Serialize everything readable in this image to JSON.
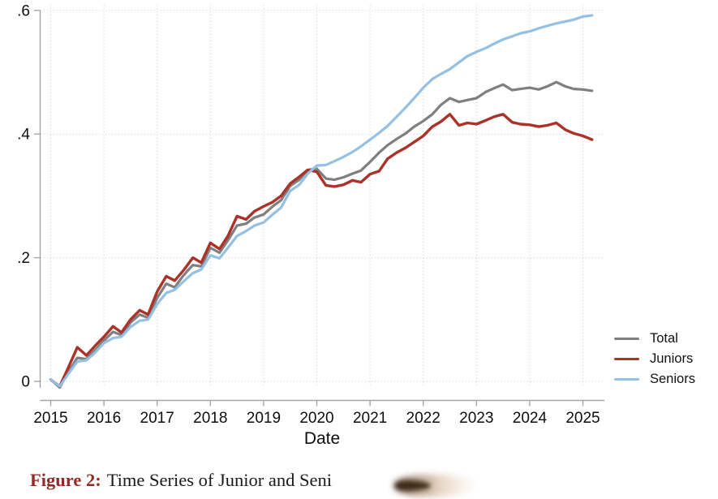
{
  "figure": {
    "caption_prefix": "Figure 2:",
    "caption_text": "Time Series of Junior and Seni",
    "caption_color": "#8f2a24"
  },
  "legend": {
    "entries": [
      {
        "label": "Total",
        "color": "#7f7f7f"
      },
      {
        "label": "Juniors",
        "color": "#ab3229"
      },
      {
        "label": "Seniors",
        "color": "#94c0e3"
      }
    ]
  },
  "chart_data": {
    "type": "line",
    "title": "",
    "xlabel": "Date",
    "ylabel": "",
    "grid": "dotted",
    "legend_position": "right",
    "xlim": [
      2014.8,
      2025.4
    ],
    "ylim": [
      -0.02,
      0.62
    ],
    "x_ticks": [
      2015,
      2016,
      2017,
      2018,
      2019,
      2020,
      2021,
      2022,
      2023,
      2024,
      2025
    ],
    "y_ticks": [
      {
        "label": "0",
        "value": 0
      },
      {
        "label": ".2",
        "value": 0.2
      },
      {
        "label": ".4",
        "value": 0.4
      },
      {
        "label": ".6",
        "value": 0.6
      }
    ],
    "x": [
      2015,
      2015.17,
      2015.33,
      2015.5,
      2015.67,
      2015.83,
      2016,
      2016.17,
      2016.33,
      2016.5,
      2016.67,
      2016.83,
      2017,
      2017.17,
      2017.33,
      2017.5,
      2017.67,
      2017.83,
      2018,
      2018.17,
      2018.33,
      2018.5,
      2018.67,
      2018.83,
      2019,
      2019.17,
      2019.33,
      2019.5,
      2019.67,
      2019.83,
      2020,
      2020.17,
      2020.33,
      2020.5,
      2020.67,
      2020.83,
      2021,
      2021.17,
      2021.33,
      2021.5,
      2021.67,
      2021.83,
      2022,
      2022.17,
      2022.33,
      2022.5,
      2022.67,
      2022.83,
      2023,
      2023.17,
      2023.33,
      2023.5,
      2023.67,
      2023.83,
      2024,
      2024.17,
      2024.33,
      2024.5,
      2024.67,
      2024.83,
      2025,
      2025.17
    ],
    "series": [
      {
        "name": "Total",
        "color": "#7f7f7f",
        "width": 3.2,
        "values": [
          0.003,
          -0.01,
          0.015,
          0.038,
          0.036,
          0.05,
          0.066,
          0.08,
          0.075,
          0.095,
          0.108,
          0.103,
          0.135,
          0.158,
          0.152,
          0.172,
          0.188,
          0.186,
          0.216,
          0.208,
          0.228,
          0.252,
          0.255,
          0.265,
          0.27,
          0.283,
          0.293,
          0.316,
          0.326,
          0.342,
          0.344,
          0.328,
          0.326,
          0.33,
          0.336,
          0.341,
          0.355,
          0.37,
          0.382,
          0.392,
          0.401,
          0.412,
          0.421,
          0.432,
          0.447,
          0.458,
          0.452,
          0.455,
          0.458,
          0.468,
          0.474,
          0.48,
          0.471,
          0.473,
          0.475,
          0.472,
          0.477,
          0.484,
          0.477,
          0.473,
          0.472,
          0.47
        ]
      },
      {
        "name": "Juniors",
        "color": "#ab3229",
        "width": 3.4,
        "values": [
          0.003,
          -0.008,
          0.022,
          0.055,
          0.042,
          0.057,
          0.072,
          0.089,
          0.079,
          0.1,
          0.115,
          0.108,
          0.145,
          0.17,
          0.163,
          0.18,
          0.2,
          0.192,
          0.224,
          0.214,
          0.235,
          0.267,
          0.262,
          0.275,
          0.283,
          0.29,
          0.3,
          0.32,
          0.331,
          0.342,
          0.339,
          0.317,
          0.315,
          0.318,
          0.325,
          0.322,
          0.335,
          0.34,
          0.36,
          0.37,
          0.378,
          0.387,
          0.397,
          0.412,
          0.42,
          0.432,
          0.414,
          0.418,
          0.416,
          0.422,
          0.428,
          0.432,
          0.419,
          0.416,
          0.415,
          0.412,
          0.414,
          0.418,
          0.407,
          0.401,
          0.397,
          0.391
        ]
      },
      {
        "name": "Seniors",
        "color": "#94c0e3",
        "width": 3.2,
        "values": [
          0.003,
          -0.008,
          0.012,
          0.032,
          0.034,
          0.046,
          0.062,
          0.07,
          0.072,
          0.088,
          0.098,
          0.1,
          0.125,
          0.143,
          0.148,
          0.162,
          0.175,
          0.181,
          0.204,
          0.199,
          0.216,
          0.235,
          0.243,
          0.252,
          0.257,
          0.27,
          0.281,
          0.308,
          0.318,
          0.336,
          0.349,
          0.35,
          0.356,
          0.363,
          0.371,
          0.38,
          0.391,
          0.402,
          0.413,
          0.428,
          0.443,
          0.458,
          0.475,
          0.489,
          0.497,
          0.505,
          0.516,
          0.526,
          0.533,
          0.539,
          0.546,
          0.553,
          0.558,
          0.563,
          0.566,
          0.571,
          0.575,
          0.579,
          0.582,
          0.585,
          0.59,
          0.592
        ]
      }
    ]
  }
}
